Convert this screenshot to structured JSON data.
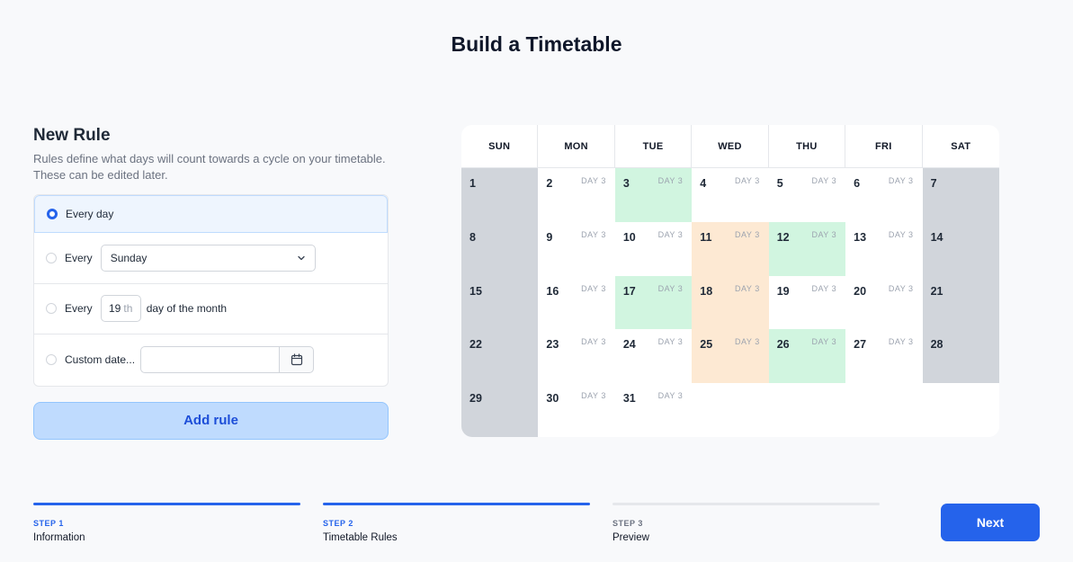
{
  "title": "Build a Timetable",
  "rule_panel": {
    "heading": "New Rule",
    "description": "Rules define what days will count towards a cycle on your timetable. These can be edited later.",
    "options": [
      {
        "label": "Every day",
        "selected": true
      },
      {
        "label": "Every",
        "select_value": "Sunday",
        "selected": false
      },
      {
        "label": "Every",
        "day_value": "19",
        "day_suffix": "th",
        "after_text": "day of the month",
        "selected": false
      },
      {
        "label": "Custom date...",
        "date_value": "",
        "selected": false
      }
    ],
    "add_button": "Add rule"
  },
  "calendar": {
    "weekdays": [
      "SUN",
      "MON",
      "TUE",
      "WED",
      "THU",
      "FRI",
      "SAT"
    ],
    "tag_text": "DAY 3",
    "colors": {
      "weekend": "#d1d5db",
      "green": "#d1f5e0",
      "orange": "#fde9d3"
    },
    "days": [
      {
        "n": "1",
        "tag": false,
        "type": "weekend"
      },
      {
        "n": "2",
        "tag": true,
        "type": ""
      },
      {
        "n": "3",
        "tag": true,
        "type": "green"
      },
      {
        "n": "4",
        "tag": true,
        "type": ""
      },
      {
        "n": "5",
        "tag": true,
        "type": ""
      },
      {
        "n": "6",
        "tag": true,
        "type": ""
      },
      {
        "n": "7",
        "tag": false,
        "type": "weekend"
      },
      {
        "n": "8",
        "tag": false,
        "type": "weekend"
      },
      {
        "n": "9",
        "tag": true,
        "type": ""
      },
      {
        "n": "10",
        "tag": true,
        "type": ""
      },
      {
        "n": "11",
        "tag": true,
        "type": "orange"
      },
      {
        "n": "12",
        "tag": true,
        "type": "green"
      },
      {
        "n": "13",
        "tag": true,
        "type": ""
      },
      {
        "n": "14",
        "tag": false,
        "type": "weekend"
      },
      {
        "n": "15",
        "tag": false,
        "type": "weekend"
      },
      {
        "n": "16",
        "tag": true,
        "type": ""
      },
      {
        "n": "17",
        "tag": true,
        "type": "green"
      },
      {
        "n": "18",
        "tag": true,
        "type": "orange"
      },
      {
        "n": "19",
        "tag": true,
        "type": ""
      },
      {
        "n": "20",
        "tag": true,
        "type": ""
      },
      {
        "n": "21",
        "tag": false,
        "type": "weekend"
      },
      {
        "n": "22",
        "tag": false,
        "type": "weekend"
      },
      {
        "n": "23",
        "tag": true,
        "type": ""
      },
      {
        "n": "24",
        "tag": true,
        "type": ""
      },
      {
        "n": "25",
        "tag": true,
        "type": "orange"
      },
      {
        "n": "26",
        "tag": true,
        "type": "green"
      },
      {
        "n": "27",
        "tag": true,
        "type": ""
      },
      {
        "n": "28",
        "tag": false,
        "type": "weekend"
      },
      {
        "n": "29",
        "tag": false,
        "type": "weekend"
      },
      {
        "n": "30",
        "tag": true,
        "type": ""
      },
      {
        "n": "31",
        "tag": true,
        "type": ""
      },
      {
        "n": "",
        "tag": false,
        "type": "empty"
      },
      {
        "n": "",
        "tag": false,
        "type": "empty"
      },
      {
        "n": "",
        "tag": false,
        "type": "empty"
      },
      {
        "n": "",
        "tag": false,
        "type": "empty"
      }
    ]
  },
  "steps": [
    {
      "label": "STEP 1",
      "name": "Information",
      "active": true
    },
    {
      "label": "STEP 2",
      "name": "Timetable Rules",
      "active": true
    },
    {
      "label": "STEP 3",
      "name": "Preview",
      "active": false
    }
  ],
  "next_button": "Next",
  "accent_color": "#2563eb"
}
